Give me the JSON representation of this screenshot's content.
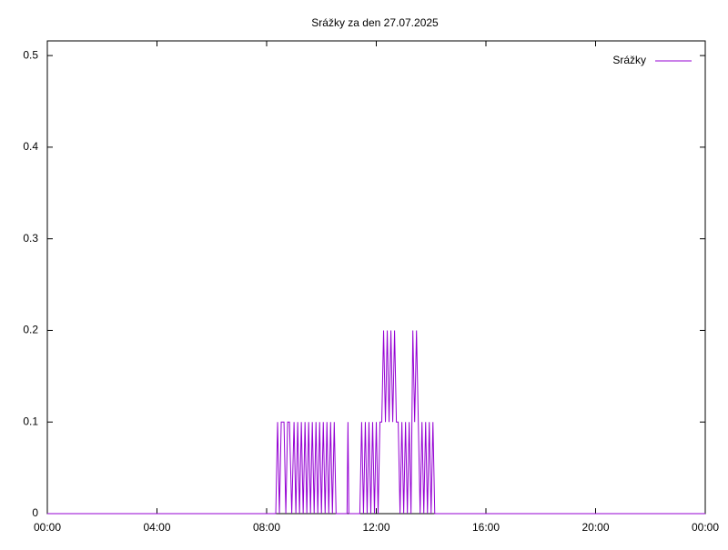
{
  "chart_data": {
    "type": "line",
    "title": "Srážky za den 27.07.2025",
    "x": [
      0,
      500,
      504,
      508,
      512,
      518,
      522,
      526,
      530,
      535,
      540,
      544,
      548,
      552,
      556,
      560,
      564,
      568,
      572,
      576,
      580,
      584,
      588,
      592,
      596,
      600,
      604,
      608,
      612,
      616,
      620,
      624,
      628,
      632,
      656,
      658,
      660,
      684,
      688,
      692,
      696,
      700,
      704,
      708,
      712,
      716,
      720,
      724,
      728,
      732,
      736,
      740,
      744,
      748,
      752,
      756,
      760,
      764,
      768,
      772,
      776,
      780,
      784,
      788,
      792,
      796,
      800,
      804,
      808,
      812,
      816,
      820,
      824,
      828,
      832,
      836,
      840,
      844,
      848,
      1440
    ],
    "series": [
      {
        "name": "Srážky",
        "color": "#9400d3",
        "values": [
          0,
          0,
          0.1,
          0,
          0.1,
          0.1,
          0,
          0.1,
          0.1,
          0,
          0.1,
          0,
          0.1,
          0,
          0.1,
          0,
          0.1,
          0,
          0.1,
          0,
          0.1,
          0,
          0.1,
          0,
          0.1,
          0,
          0.1,
          0,
          0.1,
          0,
          0.1,
          0,
          0.1,
          0,
          0,
          0.1,
          0,
          0,
          0.1,
          0,
          0.1,
          0,
          0.1,
          0,
          0.1,
          0,
          0.1,
          0,
          0.1,
          0.1,
          0.2,
          0.1,
          0.2,
          0.1,
          0.2,
          0.1,
          0.2,
          0.1,
          0.1,
          0,
          0.1,
          0,
          0.1,
          0,
          0.1,
          0,
          0.2,
          0.1,
          0.2,
          0.1,
          0,
          0.1,
          0,
          0.1,
          0,
          0.1,
          0,
          0.1,
          0,
          0
        ]
      }
    ],
    "xlim": [
      0,
      1440
    ],
    "xticks": [
      {
        "value": 0,
        "label": "00:00"
      },
      {
        "value": 240,
        "label": "04:00"
      },
      {
        "value": 480,
        "label": "08:00"
      },
      {
        "value": 720,
        "label": "12:00"
      },
      {
        "value": 960,
        "label": "16:00"
      },
      {
        "value": 1200,
        "label": "20:00"
      },
      {
        "value": 1440,
        "label": "00:00"
      }
    ],
    "ylim": [
      0,
      0.516
    ],
    "yticks": [
      0,
      0.1,
      0.2,
      0.3,
      0.4,
      0.5
    ],
    "legend": "top-right"
  }
}
